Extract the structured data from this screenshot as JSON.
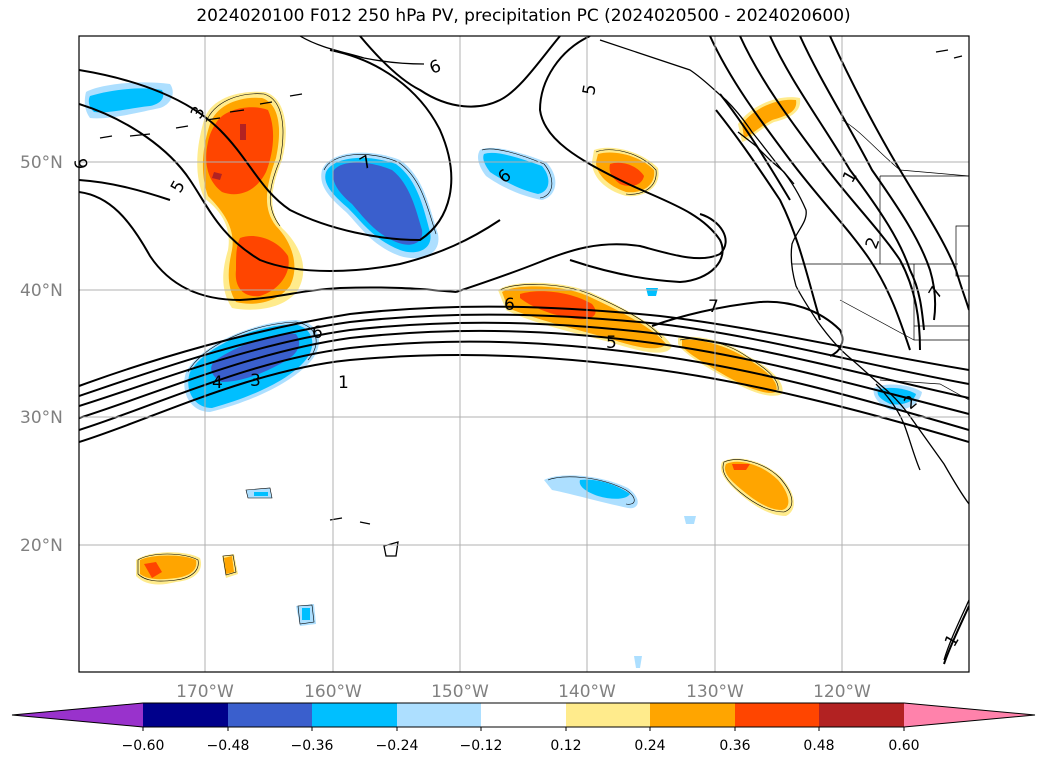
{
  "title": "2024020100 F012 250 hPa PV, precipitation PC (2024020500 - 2024020600)",
  "lat_labels": [
    "50°N",
    "40°N",
    "30°N",
    "20°N"
  ],
  "lon_labels": [
    "170°W",
    "160°W",
    "150°W",
    "140°W",
    "130°W",
    "120°W"
  ],
  "contour_labels": [
    "6",
    "5",
    "3",
    "5",
    "6",
    "6",
    "7",
    "6",
    "5",
    "7",
    "4",
    "3",
    "1",
    "2",
    "1",
    "7",
    "1",
    "2"
  ],
  "colorbar": {
    "ticks": [
      "−0.60",
      "−0.48",
      "−0.36",
      "−0.24",
      "−0.12",
      "0.12",
      "0.24",
      "0.36",
      "0.48",
      "0.60"
    ],
    "colors": [
      "#9932CC",
      "#00008B",
      "#3A5FCD",
      "#00BFFF",
      "#ADDFFF",
      "#FFFFFF",
      "#FFEB8C",
      "#FFA500",
      "#FF4500",
      "#B22222",
      "#FF82AB"
    ]
  },
  "colors": {
    "neg_strong": "#3A5FCD",
    "neg_mid": "#00BFFF",
    "neg_weak": "#ADDFFF",
    "pos_weak": "#FFEB8C",
    "pos_mid": "#FFA500",
    "pos_strong": "#FF4500",
    "pos_vstrong": "#B22222",
    "extreme_neg": "#9932CC",
    "extreme_pos": "#FF82AB"
  }
}
